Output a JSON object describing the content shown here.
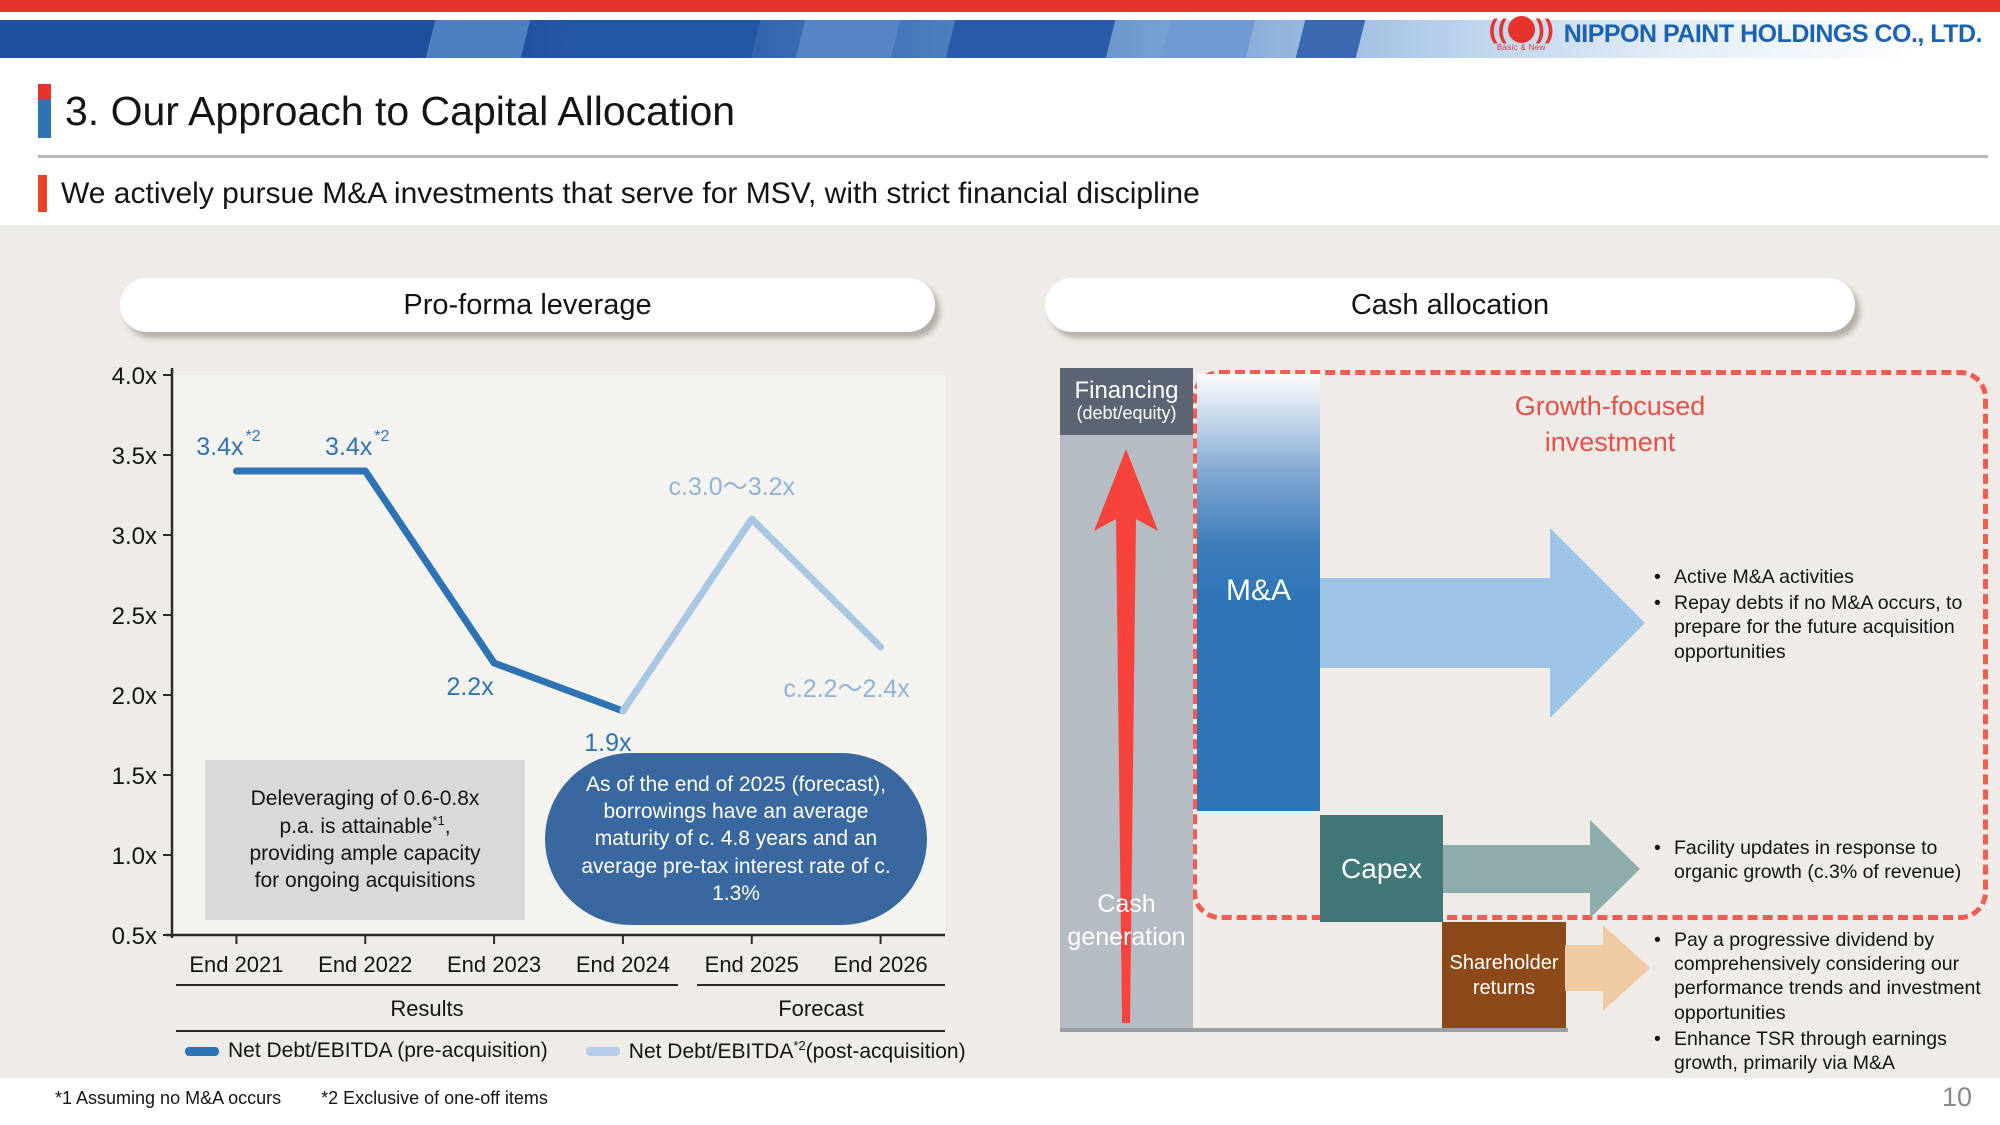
{
  "header": {
    "logo_name": "NIPPON PAINT HOLDINGS CO., LTD.",
    "logo_tagline": "Basic & New"
  },
  "title": "3. Our Approach to Capital Allocation",
  "subtitle": "We actively pursue M&A investments that serve for MSV, with strict financial discipline",
  "left_panel": {
    "header": "Pro-forma leverage"
  },
  "chart_data": {
    "type": "line",
    "title": "Pro-forma leverage",
    "categories": [
      "End 2021",
      "End 2022",
      "End 2023",
      "End 2024",
      "End 2025",
      "End 2026"
    ],
    "yticks": [
      "4.0x",
      "3.5x",
      "3.0x",
      "2.5x",
      "2.0x",
      "1.5x",
      "1.0x",
      "0.5x"
    ],
    "ylim": [
      0.5,
      4.0
    ],
    "grid": false,
    "legend_position": "bottom",
    "series": [
      {
        "name": "Net Debt/EBITDA (pre-acquisition)",
        "color": "#2E74B5",
        "label_color": "#2E74B5",
        "x": [
          0,
          1,
          2,
          3
        ],
        "values": [
          3.4,
          3.4,
          2.2,
          1.9
        ],
        "labels": [
          "3.4x",
          "3.4x",
          "2.2x",
          "1.9x"
        ],
        "label_sup": [
          "*2",
          "*2",
          null,
          null
        ],
        "label_dx": [
          -8,
          -8,
          -24,
          -15
        ],
        "label_dy": [
          -16,
          -16,
          32,
          40
        ]
      },
      {
        "name": "Net Debt/EBITDA*2(post-acquisition)",
        "color": "#A9C6E4",
        "label_color": "#8FB3DA",
        "x": [
          3,
          4,
          5
        ],
        "values": [
          1.9,
          3.1,
          2.3
        ],
        "labels": [
          null,
          "c.3.0〜3.2x",
          "c.2.2〜2.4x"
        ],
        "label_sup": [
          null,
          null,
          null
        ],
        "label_dx": [
          0,
          -20,
          -34
        ],
        "label_dy": [
          0,
          -24,
          50
        ]
      }
    ],
    "group_labels": {
      "results": "Results",
      "forecast": "Forecast"
    },
    "legend": {
      "pre_label": "Net Debt/EBITDA (pre-acquisition)",
      "post_label_pre": "Net Debt/EBITDA",
      "post_label_sup": "*2",
      "post_label_post": "(post-acquisition)"
    },
    "annotations": {
      "gray_box": {
        "line1": "Deleveraging of 0.6-0.8x",
        "line2_pre": "p.a. is attainable",
        "line2_sup": "*1",
        "line2_post": ",",
        "line3": "providing ample capacity",
        "line4": "for ongoing acquisitions"
      },
      "blue_ellipse": "As of the end of 2025 (forecast), borrowings have an average maturity of c. 4.8 years and an average pre-tax interest rate of c. 1.3%"
    }
  },
  "right_panel": {
    "header": "Cash allocation",
    "financing_line1": "Financing",
    "financing_line2": "(debt/equity)",
    "cash_generation": "Cash generation",
    "ma_label": "M&A",
    "capex_label": "Capex",
    "shareholder_label": "Shareholder returns",
    "growth_title": "Growth-focused investment",
    "ma_bullets": [
      "Active M&A activities",
      "Repay debts if no M&A occurs, to prepare for the future acquisition opportunities"
    ],
    "capex_bullets": [
      "Facility updates in response to organic growth (c.3% of revenue)"
    ],
    "shareholder_bullets": [
      "Pay a progressive dividend by comprehensively considering our performance trends and investment opportunities",
      "Enhance TSR through earnings growth, primarily via M&A"
    ]
  },
  "colors": {
    "accent_red": "#E8332C",
    "accent_blue": "#2E74B5",
    "line_pre": "#2E74B5",
    "line_post": "#A9C6E4",
    "ellipse_bg": "#39679F",
    "gray_box_bg": "#D9D9D9",
    "financing_bg": "#5A6472",
    "cash_column_bg": "#B6BCC4",
    "red_arrow": "#F8423C",
    "ma_bar": "#2E75B6",
    "ma_arrow": "#9DC3E6",
    "capex_bg": "#3F7876",
    "capex_arrow": "#8FACAC",
    "shareholder_bg": "#8B4A17",
    "shareholder_arrow": "#EFCBA4",
    "dashed_border": "#F25C52"
  },
  "footnotes": [
    "*1 Assuming no M&A occurs",
    "*2 Exclusive of one-off items"
  ],
  "page_number": "10"
}
